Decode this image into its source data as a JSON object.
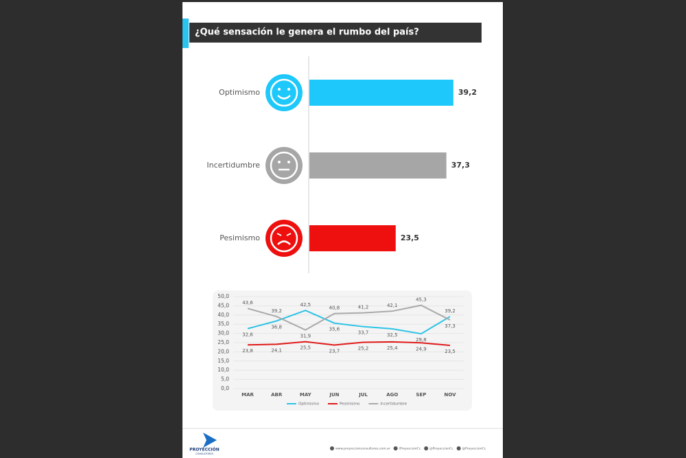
{
  "chart_data": [
    {
      "type": "hbar",
      "title": "¿Qué sensación le genera el rumbo del país?",
      "categories": [
        "Optimismo",
        "Incertidumbre",
        "Pesimismo"
      ],
      "values": [
        39.2,
        37.3,
        23.5
      ],
      "value_labels": [
        "39,2",
        "37,3",
        "23,5"
      ],
      "colors": [
        "#1ec8fb",
        "#a7a6a6",
        "#ee0f0f"
      ],
      "xlim": [
        0,
        48
      ]
    },
    {
      "type": "line",
      "categories": [
        "MAR",
        "ABR",
        "MAY",
        "JUN",
        "JUL",
        "AGO",
        "SEP",
        "NOV"
      ],
      "series": [
        {
          "name": "Optimismo",
          "color": "#2ec3e6",
          "values": [
            32.6,
            36.8,
            42.5,
            35.6,
            33.7,
            32.5,
            29.8,
            39.2
          ],
          "value_labels": [
            "32,6",
            "36,8",
            "42,5",
            "35,6",
            "33,7",
            "32,5",
            "29,8",
            "39,2"
          ]
        },
        {
          "name": "Pesimismo",
          "color": "#e01818",
          "values": [
            23.8,
            24.1,
            25.5,
            23.7,
            25.2,
            25.4,
            24.9,
            23.5
          ],
          "value_labels": [
            "23,8",
            "24,1",
            "25,5",
            "23,7",
            "25,2",
            "25,4",
            "24,9",
            "23,5"
          ]
        },
        {
          "name": "Incertidumbre",
          "color": "#a9a9a9",
          "values": [
            43.6,
            39.2,
            31.9,
            40.8,
            41.2,
            42.1,
            45.3,
            37.3
          ],
          "value_labels": [
            "43,6",
            "39,2",
            "31,9",
            "40,8",
            "41,2",
            "42,1",
            "45,3",
            "37,3"
          ]
        }
      ],
      "ylim": [
        0,
        50
      ],
      "yticks": [
        {
          "value": 0,
          "label": "0,0"
        },
        {
          "value": 5,
          "label": "5,0"
        },
        {
          "value": 10,
          "label": "10,0"
        },
        {
          "value": 15,
          "label": "15,0"
        },
        {
          "value": 20,
          "label": "20,0"
        },
        {
          "value": 25,
          "label": "25,0"
        },
        {
          "value": 30,
          "label": "30,0"
        },
        {
          "value": 35,
          "label": "35,0"
        },
        {
          "value": 40,
          "label": "40,0"
        },
        {
          "value": 45,
          "label": "45,0"
        },
        {
          "value": 50,
          "label": "50,0"
        }
      ],
      "grid": true
    }
  ],
  "footer": {
    "logo": "PROYECCIÓN",
    "logo_sub": "CONSULTORES",
    "links": [
      "www.proyeccionconsultores.com.ar",
      "/ProyeccionCc",
      "@ProyeccionCc",
      "@ProyeccionCc"
    ]
  }
}
